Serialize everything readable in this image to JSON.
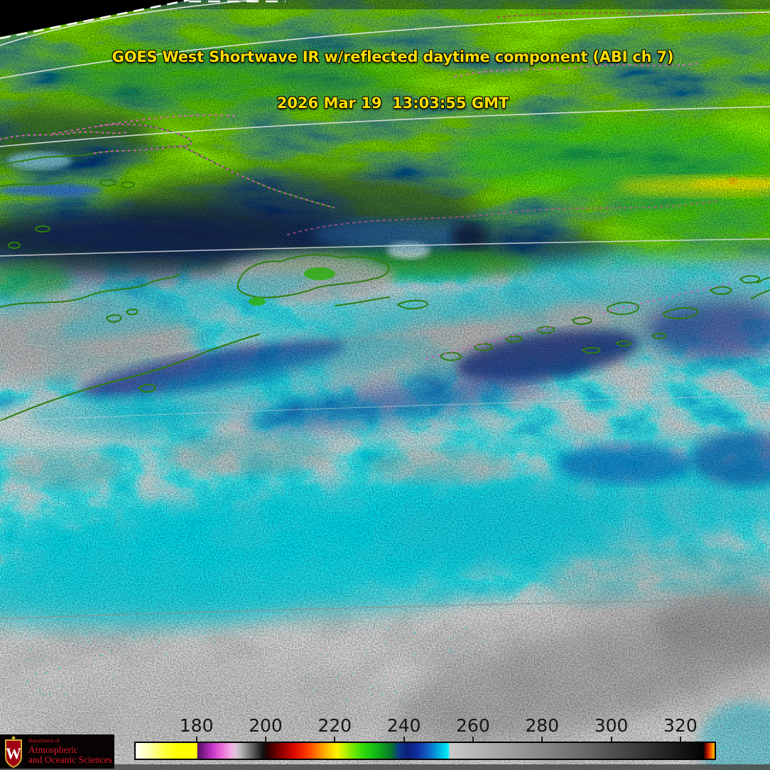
{
  "header": {
    "line1": "GOES West Shortwave IR w/reflected daytime component (ABI ch 7)",
    "line2": "2026 Mar 19  13:03:55 GMT",
    "text_color": "#ffdf00"
  },
  "colorbar": {
    "ticks": [
      180,
      200,
      220,
      240,
      260,
      280,
      300,
      320
    ],
    "range": [
      162,
      330.3
    ],
    "stops": [
      [
        162,
        "#fffff4"
      ],
      [
        166,
        "#ffffb0"
      ],
      [
        170,
        "#ffff44"
      ],
      [
        174,
        "#ffff00"
      ],
      [
        179.8,
        "#ffff00"
      ],
      [
        180,
        "#581060"
      ],
      [
        181.5,
        "#7c1a8a"
      ],
      [
        184,
        "#c032c4"
      ],
      [
        187,
        "#ec6ad6"
      ],
      [
        189.5,
        "#f2a8e6"
      ],
      [
        191,
        "#e0c4da"
      ],
      [
        192.5,
        "#b9b9b9"
      ],
      [
        196,
        "#606060"
      ],
      [
        199,
        "#111111"
      ],
      [
        200.5,
        "#2e0000"
      ],
      [
        204,
        "#870000"
      ],
      [
        208,
        "#da0800"
      ],
      [
        212,
        "#ff3c00"
      ],
      [
        215.5,
        "#ff8c00"
      ],
      [
        218.5,
        "#ffcf00"
      ],
      [
        220.5,
        "#fdf400"
      ],
      [
        222.5,
        "#c4f400"
      ],
      [
        225,
        "#7ce800"
      ],
      [
        228,
        "#34dc0a"
      ],
      [
        231,
        "#17c312"
      ],
      [
        234,
        "#0c9a1c"
      ],
      [
        236.5,
        "#07702e"
      ],
      [
        238.5,
        "#0a3a8c"
      ],
      [
        241,
        "#0d2079"
      ],
      [
        244,
        "#112fa2"
      ],
      [
        247,
        "#0f62c4"
      ],
      [
        250,
        "#00a9e0"
      ],
      [
        252.6,
        "#00eaf6"
      ],
      [
        253.1,
        "#40e8ee"
      ],
      [
        253.3,
        "#c9c9c9"
      ],
      [
        290,
        "#707070"
      ],
      [
        327,
        "#030303"
      ],
      [
        327.8,
        "#7a0800"
      ],
      [
        328.8,
        "#e83800"
      ],
      [
        330,
        "#ffb400"
      ]
    ]
  },
  "logo": {
    "dept": "Department of",
    "line1": "Atmospheric",
    "line2": "and Oceanic Sciences",
    "text_color": "#e01a2b",
    "crest_letter": "W"
  },
  "scene_colors": {
    "space_black": "#000000",
    "graticule": "#e6e6e6",
    "coastline_green": "#2f7d10",
    "coastline_dots_magenta": "#e455d4",
    "cold_cloud_green": "#1fae16",
    "coldest_cloud_yellow": "#e8e800",
    "midlevel_cloud_cyan": "#00dcee",
    "low_cloud_navy": "#0a2f9c",
    "ocean_gray": "#b5b2ae",
    "warm_surface_gray": "#c8c8c8"
  }
}
